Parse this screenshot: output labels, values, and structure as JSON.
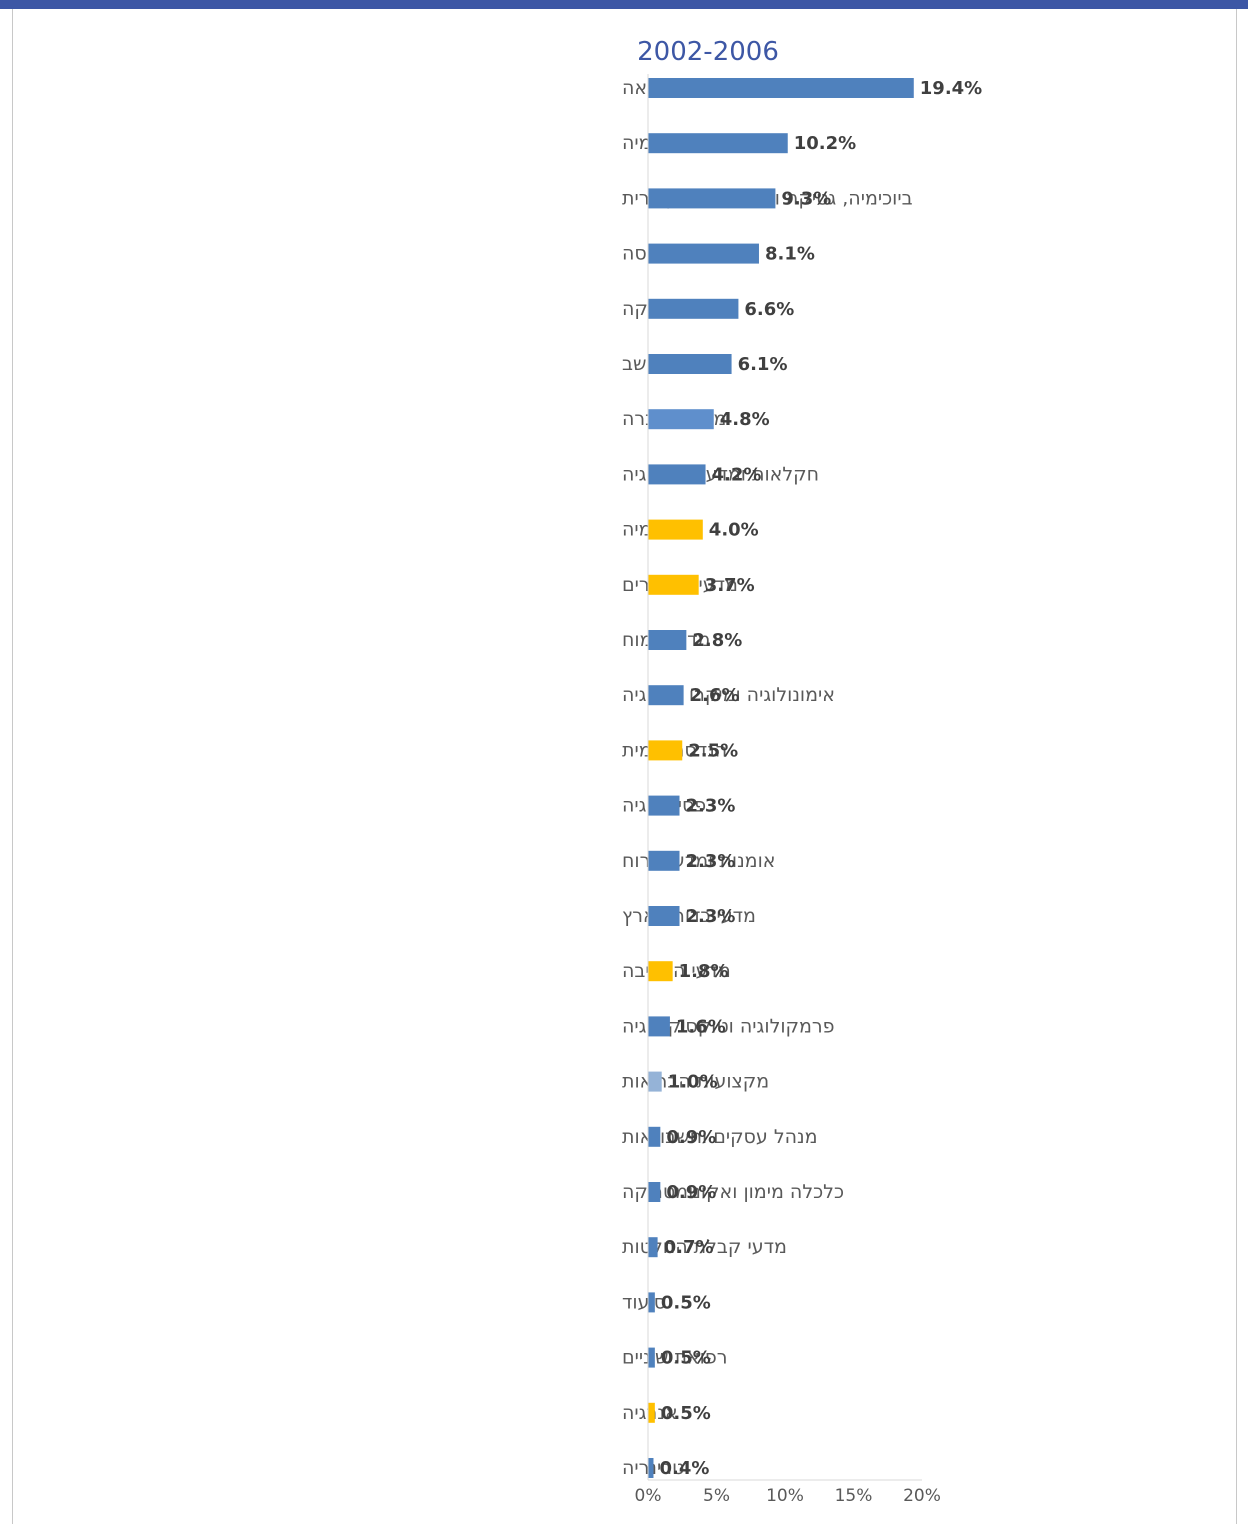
{
  "chart_data": {
    "type": "bar",
    "orientation": "horizontal",
    "title": "2002-2006",
    "categories": [
      "רפואה",
      "פיזיקה ואסטרונומיה",
      "ביוכימיה, גטיקה וביולוגיה מולקולרית",
      "הנדסה",
      "מתמטיקה",
      "מדעי המחשב",
      "מדעי החברה",
      "חקלאות ומדעי הביולוגיה",
      "כימיה",
      "מדעי החומרים",
      "מדעי המוח",
      "אימונולוגיה ומיקרו ביולוגיה",
      "הנדסה כימית",
      "פסיכולוגיה",
      "אומנות ומדעי הרוח",
      "מדעי כדור הארץ",
      "מדעי הסביבה",
      "פרמקולוגיה וטוקסיקולוגיה",
      "מקצועות הבריאות",
      "מנהל עסקים וחשבונאות",
      "כלכלה מימון ואקונומטריקה",
      "מדעי קבלת החלטות",
      "סיעוד",
      "רפואת שיניים",
      "אנרגיה",
      "וטרינריה"
    ],
    "values": [
      19.4,
      10.2,
      9.3,
      8.1,
      6.6,
      6.1,
      4.8,
      4.2,
      4.0,
      3.7,
      2.8,
      2.6,
      2.5,
      2.3,
      2.3,
      2.3,
      1.8,
      1.6,
      1.0,
      0.9,
      0.9,
      0.7,
      0.5,
      0.5,
      0.5,
      0.4
    ],
    "value_labels": [
      "19.4%",
      "10.2%",
      "9.3%",
      "8.1%",
      "6.6%",
      "6.1%",
      "4.8%",
      "4.2%",
      "4.0%",
      "3.7%",
      "2.8%",
      "2.6%",
      "2.5%",
      "2.3%",
      "2.3%",
      "2.3%",
      "1.8%",
      "1.6%",
      "1.0%",
      "0.9%",
      "0.9%",
      "0.7%",
      "0.5%",
      "0.5%",
      "0.5%",
      "0.4%"
    ],
    "bar_colors": [
      "#4f81bd",
      "#4f81bd",
      "#4f81bd",
      "#4f81bd",
      "#4f81bd",
      "#4f81bd",
      "#5f8fcc",
      "#4f81bd",
      "#ffc000",
      "#ffc000",
      "#4f81bd",
      "#4f81bd",
      "#ffc000",
      "#4f81bd",
      "#4f81bd",
      "#4f81bd",
      "#ffc000",
      "#4f81bd",
      "#95b3d7",
      "#4f81bd",
      "#4f81bd",
      "#4f81bd",
      "#4f81bd",
      "#4f81bd",
      "#ffc000",
      "#4f81bd"
    ],
    "xlim": [
      0,
      20
    ],
    "xticks": [
      "0%",
      "5%",
      "10%",
      "15%",
      "20%"
    ],
    "xlabel": "",
    "ylabel": "",
    "grid": false,
    "legend": "none"
  }
}
